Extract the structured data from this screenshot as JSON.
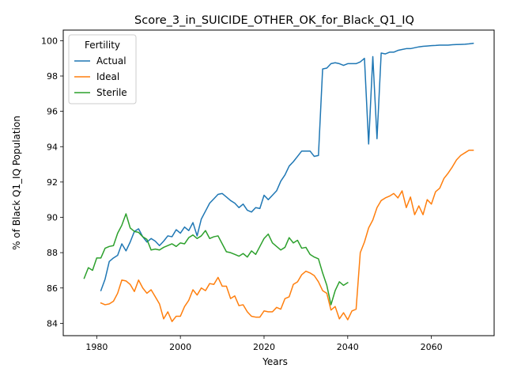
{
  "chart_data": {
    "type": "line",
    "title": "Score_3_in_SUICIDE_OTHER_OK_for_Black_Q1_IQ",
    "xlabel": "Years",
    "ylabel": "% of Black Q1_IQ Population",
    "xlim": [
      1972,
      2075
    ],
    "ylim": [
      83.3,
      100.6
    ],
    "xticks": [
      1980,
      2000,
      2020,
      2040,
      2060
    ],
    "xtick_labels": [
      "1980",
      "2000",
      "2020",
      "2040",
      "2060"
    ],
    "yticks": [
      84,
      86,
      88,
      90,
      92,
      94,
      96,
      98,
      100
    ],
    "ytick_labels": [
      "84",
      "86",
      "88",
      "90",
      "92",
      "94",
      "96",
      "98",
      "100"
    ],
    "grid": false,
    "legend": {
      "title": "Fertility",
      "position": "top-left"
    },
    "series": [
      {
        "name": "Actual",
        "color": "#1f77b4",
        "x": [
          1981,
          1982,
          1983,
          1984,
          1985,
          1986,
          1987,
          1988,
          1989,
          1990,
          1991,
          1992,
          1993,
          1994,
          1995,
          1996,
          1997,
          1998,
          1999,
          2000,
          2001,
          2002,
          2003,
          2004,
          2005,
          2006,
          2007,
          2008,
          2009,
          2010,
          2011,
          2012,
          2013,
          2014,
          2015,
          2016,
          2017,
          2018,
          2019,
          2020,
          2021,
          2022,
          2023,
          2024,
          2025,
          2026,
          2027,
          2028,
          2029,
          2030,
          2031,
          2032,
          2033,
          2034,
          2035,
          2036,
          2037,
          2038,
          2039,
          2040,
          2041,
          2042,
          2043,
          2044,
          2045,
          2046,
          2047,
          2048,
          2049,
          2050,
          2051,
          2052,
          2053,
          2054,
          2055,
          2056,
          2057,
          2058,
          2059,
          2060,
          2061,
          2062,
          2063,
          2064,
          2065,
          2066,
          2067,
          2068,
          2069,
          2070
        ],
        "y": [
          85.85,
          86.5,
          87.5,
          87.7,
          87.85,
          88.5,
          88.1,
          88.6,
          89.2,
          89.35,
          88.9,
          88.6,
          88.8,
          88.65,
          88.4,
          88.65,
          88.95,
          88.9,
          89.3,
          89.1,
          89.45,
          89.25,
          89.7,
          88.95,
          89.9,
          90.35,
          90.8,
          91.05,
          91.3,
          91.35,
          91.15,
          90.95,
          90.8,
          90.55,
          90.75,
          90.4,
          90.3,
          90.55,
          90.5,
          91.25,
          91.0,
          91.25,
          91.5,
          92.05,
          92.4,
          92.9,
          93.15,
          93.45,
          93.75,
          93.75,
          93.75,
          93.45,
          93.5,
          98.4,
          98.45,
          98.7,
          98.75,
          98.7,
          98.6,
          98.7,
          98.7,
          98.7,
          98.8,
          99.0,
          94.15,
          99.1,
          94.45,
          99.3,
          99.25,
          99.35,
          99.35,
          99.45,
          99.5,
          99.55,
          99.55,
          99.6,
          99.65,
          99.68,
          99.7,
          99.72,
          99.73,
          99.75,
          99.75,
          99.75,
          99.77,
          99.78,
          99.79,
          99.8,
          99.82,
          99.85
        ]
      },
      {
        "name": "Ideal",
        "color": "#ff7f0e",
        "x": [
          1981,
          1982,
          1983,
          1984,
          1985,
          1986,
          1987,
          1988,
          1989,
          1990,
          1991,
          1992,
          1993,
          1994,
          1995,
          1996,
          1997,
          1998,
          1999,
          2000,
          2001,
          2002,
          2003,
          2004,
          2005,
          2006,
          2007,
          2008,
          2009,
          2010,
          2011,
          2012,
          2013,
          2014,
          2015,
          2016,
          2017,
          2018,
          2019,
          2020,
          2021,
          2022,
          2023,
          2024,
          2025,
          2026,
          2027,
          2028,
          2029,
          2030,
          2031,
          2032,
          2033,
          2034,
          2035,
          2036,
          2037,
          2038,
          2039,
          2040,
          2041,
          2042,
          2043,
          2044,
          2045,
          2046,
          2047,
          2048,
          2049,
          2050,
          2051,
          2052,
          2053,
          2054,
          2055,
          2056,
          2057,
          2058,
          2059,
          2060,
          2061,
          2062,
          2063,
          2064,
          2065,
          2066,
          2067,
          2068,
          2069,
          2070
        ],
        "y": [
          85.15,
          85.05,
          85.1,
          85.25,
          85.7,
          86.45,
          86.4,
          86.2,
          85.8,
          86.45,
          86.0,
          85.7,
          85.9,
          85.5,
          85.1,
          84.25,
          84.65,
          84.1,
          84.4,
          84.4,
          84.95,
          85.3,
          85.9,
          85.6,
          86.0,
          85.85,
          86.25,
          86.2,
          86.6,
          86.1,
          86.1,
          85.4,
          85.55,
          85.0,
          85.05,
          84.65,
          84.4,
          84.35,
          84.35,
          84.7,
          84.65,
          84.65,
          84.9,
          84.8,
          85.4,
          85.5,
          86.2,
          86.35,
          86.75,
          86.95,
          86.85,
          86.7,
          86.35,
          85.85,
          85.7,
          84.75,
          84.95,
          84.25,
          84.6,
          84.2,
          84.7,
          84.8,
          88.0,
          88.6,
          89.4,
          89.85,
          90.55,
          90.95,
          91.1,
          91.2,
          91.35,
          91.1,
          91.5,
          90.55,
          91.15,
          90.15,
          90.65,
          90.15,
          91.0,
          90.75,
          91.45,
          91.65,
          92.2,
          92.5,
          92.85,
          93.25,
          93.5,
          93.65,
          93.8,
          93.8
        ]
      },
      {
        "name": "Sterile",
        "color": "#2ca02c",
        "x": [
          1977,
          1978,
          1979,
          1980,
          1981,
          1982,
          1983,
          1984,
          1985,
          1986,
          1987,
          1988,
          1989,
          1990,
          1991,
          1992,
          1993,
          1994,
          1995,
          1996,
          1997,
          1998,
          1999,
          2000,
          2001,
          2002,
          2003,
          2004,
          2005,
          2006,
          2007,
          2008,
          2009,
          2010,
          2011,
          2012,
          2013,
          2014,
          2015,
          2016,
          2017,
          2018,
          2019,
          2020,
          2021,
          2022,
          2023,
          2024,
          2025,
          2026,
          2027,
          2028,
          2029,
          2030,
          2031,
          2032,
          2033,
          2034,
          2035,
          2036,
          2037,
          2038,
          2039,
          2040
        ],
        "y": [
          86.55,
          87.15,
          87.0,
          87.7,
          87.7,
          88.25,
          88.35,
          88.4,
          89.1,
          89.55,
          90.2,
          89.4,
          89.2,
          89.15,
          88.9,
          88.75,
          88.15,
          88.2,
          88.15,
          88.3,
          88.4,
          88.5,
          88.35,
          88.55,
          88.5,
          88.85,
          89.0,
          88.8,
          88.95,
          89.25,
          88.8,
          88.9,
          88.95,
          88.5,
          88.05,
          88.0,
          87.9,
          87.8,
          87.95,
          87.75,
          88.1,
          87.9,
          88.35,
          88.8,
          89.05,
          88.55,
          88.35,
          88.15,
          88.3,
          88.85,
          88.55,
          88.7,
          88.25,
          88.3,
          87.9,
          87.75,
          87.65,
          86.85,
          86.15,
          85.05,
          85.85,
          86.35,
          86.15,
          86.3
        ]
      }
    ]
  }
}
